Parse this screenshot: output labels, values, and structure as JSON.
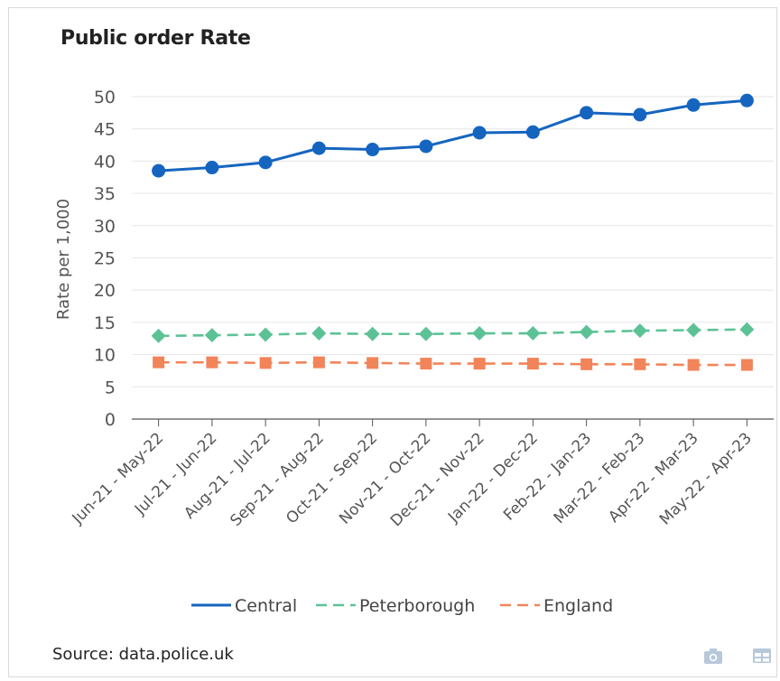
{
  "title": "Public order Rate",
  "source": "Source: data.police.uk",
  "icons": [
    "camera-icon",
    "table-icon"
  ],
  "colors": {
    "Central": "#1565c0",
    "Peterborough": "#5cc295",
    "England": "#f2845a"
  },
  "chart_data": {
    "type": "line",
    "title": "Public order Rate",
    "ylabel": "Rate per 1,000",
    "xlabel": "",
    "ylim": [
      0,
      50
    ],
    "yticks": [
      0,
      5,
      10,
      15,
      20,
      25,
      30,
      35,
      40,
      45,
      50
    ],
    "grid": true,
    "legend_position": "bottom",
    "categories": [
      "Jun-21 - May-22",
      "Jul-21 - Jun-22",
      "Aug-21 - Jul-22",
      "Sep-21 - Aug-22",
      "Oct-21 - Sep-22",
      "Nov-21 - Oct-22",
      "Dec-21 - Nov-22",
      "Jan-22 - Dec-22",
      "Feb-22 - Jan-23",
      "Mar-22 - Feb-23",
      "Apr-22 - Mar-23",
      "May-22 - Apr-23"
    ],
    "series": [
      {
        "name": "Central",
        "style": "solid",
        "marker": "circle",
        "values": [
          38.5,
          39.0,
          39.8,
          42.0,
          41.8,
          42.3,
          44.4,
          44.5,
          47.5,
          47.2,
          48.7,
          49.4
        ]
      },
      {
        "name": "Peterborough",
        "style": "dashed",
        "marker": "diamond",
        "values": [
          12.9,
          13.0,
          13.1,
          13.3,
          13.2,
          13.2,
          13.3,
          13.3,
          13.5,
          13.7,
          13.8,
          13.9
        ]
      },
      {
        "name": "England",
        "style": "dashed",
        "marker": "square",
        "values": [
          8.8,
          8.8,
          8.7,
          8.8,
          8.7,
          8.6,
          8.6,
          8.6,
          8.5,
          8.5,
          8.4,
          8.4
        ]
      }
    ]
  }
}
